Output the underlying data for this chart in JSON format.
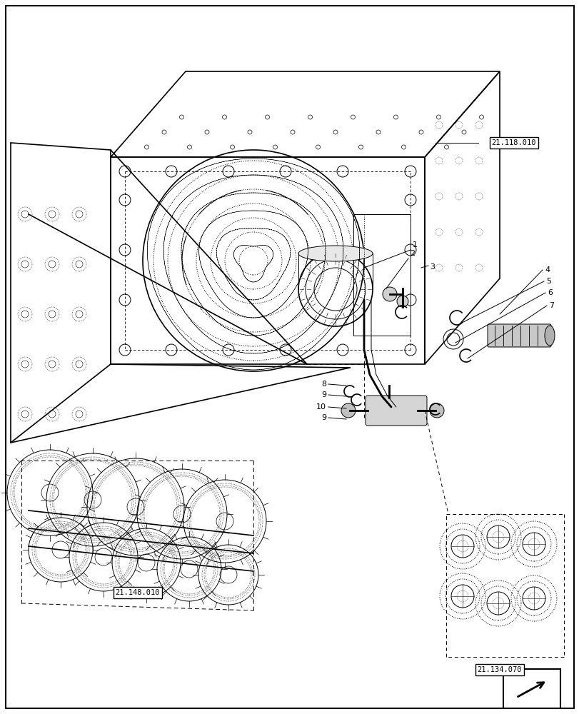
{
  "bg_color": "#ffffff",
  "line_color": "#000000",
  "labels": {
    "21.118.010": [
      0.845,
      0.8
    ],
    "21.148.010": [
      0.24,
      0.178
    ],
    "21.134.070": [
      0.7,
      0.062
    ]
  },
  "figsize": [
    8.12,
    10.0
  ],
  "dpi": 100
}
